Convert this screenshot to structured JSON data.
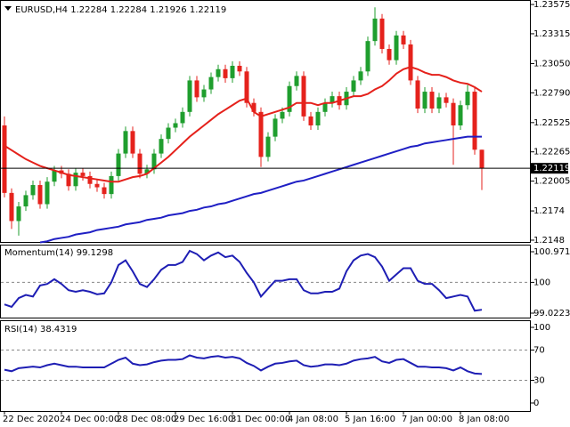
{
  "chart_data": [
    {
      "type": "candlestick",
      "title": "EURUSD,H4",
      "categories": [
        "22 Dec 2020",
        null,
        null,
        null,
        null,
        null,
        null,
        null,
        "24 Dec 00:00",
        null,
        null,
        null,
        null,
        null,
        null,
        null,
        "28 Dec 08:00",
        null,
        null,
        null,
        null,
        null,
        null,
        null,
        "29 Dec 16:00",
        null,
        null,
        null,
        null,
        null,
        null,
        null,
        "31 Dec 00:00",
        null,
        null,
        null,
        null,
        null,
        null,
        null,
        "4 Jan 08:00",
        null,
        null,
        null,
        null,
        null,
        null,
        null,
        "5 Jan 16:00",
        null,
        null,
        null,
        null,
        null,
        null,
        null,
        "7 Jan 00:00",
        null,
        null,
        null,
        null,
        null,
        null,
        null,
        "8 Jan 08:00",
        null,
        null,
        null
      ],
      "open": [
        1.225,
        1.219,
        1.2165,
        1.2178,
        1.2188,
        1.2197,
        1.218,
        1.22,
        1.221,
        1.2207,
        1.2196,
        1.2208,
        1.2205,
        1.2198,
        1.2195,
        1.2189,
        1.2205,
        1.2225,
        1.2245,
        1.2225,
        1.2207,
        1.2211,
        1.2225,
        1.2238,
        1.2248,
        1.2252,
        1.2262,
        1.229,
        1.2275,
        1.2282,
        1.2293,
        1.23,
        1.2292,
        1.2303,
        1.2298,
        1.227,
        1.2262,
        1.2222,
        1.224,
        1.2256,
        1.2262,
        1.2285,
        1.2294,
        1.2258,
        1.225,
        1.2262,
        1.227,
        1.2276,
        1.2268,
        1.228,
        1.229,
        1.2298,
        1.2325,
        1.2345,
        1.2318,
        1.2308,
        1.233,
        1.2322,
        1.229,
        1.2265,
        1.228,
        1.2265,
        1.2275,
        1.227,
        1.225,
        1.2268,
        1.228,
        1.22284
      ],
      "high": [
        1.2258,
        1.2194,
        1.2182,
        1.2192,
        1.2201,
        1.2201,
        1.2204,
        1.2214,
        1.2214,
        1.2211,
        1.2212,
        1.2212,
        1.2209,
        1.2202,
        1.2199,
        1.2209,
        1.2229,
        1.2249,
        1.2249,
        1.2229,
        1.2215,
        1.2229,
        1.2242,
        1.2252,
        1.2256,
        1.2266,
        1.2294,
        1.2294,
        1.2286,
        1.2297,
        1.2304,
        1.2304,
        1.2307,
        1.2307,
        1.2302,
        1.2274,
        1.2266,
        1.2244,
        1.226,
        1.2266,
        1.2289,
        1.2298,
        1.2298,
        1.2262,
        1.2266,
        1.2274,
        1.228,
        1.228,
        1.2284,
        1.2294,
        1.2302,
        1.2329,
        1.2355,
        1.2349,
        1.2322,
        1.2334,
        1.2334,
        1.2326,
        1.2294,
        1.2284,
        1.2284,
        1.2279,
        1.2279,
        1.2274,
        1.2272,
        1.2286,
        1.2284,
        1.22284
      ],
      "low": [
        1.2186,
        1.2158,
        1.2152,
        1.2174,
        1.2184,
        1.2176,
        1.2176,
        1.2196,
        1.2203,
        1.2192,
        1.2192,
        1.2201,
        1.2194,
        1.2191,
        1.2185,
        1.2185,
        1.2201,
        1.2221,
        1.2221,
        1.2203,
        1.2203,
        1.2207,
        1.2221,
        1.2234,
        1.2244,
        1.2248,
        1.2258,
        1.2271,
        1.2271,
        1.2278,
        1.2289,
        1.2288,
        1.2288,
        1.2294,
        1.2266,
        1.2258,
        1.2213,
        1.2218,
        1.2236,
        1.2252,
        1.2258,
        1.2281,
        1.2254,
        1.2246,
        1.2246,
        1.2258,
        1.2266,
        1.2264,
        1.2264,
        1.2276,
        1.2286,
        1.2294,
        1.2321,
        1.2314,
        1.2304,
        1.2304,
        1.2318,
        1.2286,
        1.2261,
        1.2261,
        1.2261,
        1.2261,
        1.2266,
        1.2215,
        1.2246,
        1.2264,
        1.2224,
        1.21926
      ],
      "close": [
        1.219,
        1.2165,
        1.2178,
        1.2188,
        1.2197,
        1.218,
        1.22,
        1.221,
        1.2207,
        1.2196,
        1.2208,
        1.2205,
        1.2198,
        1.2195,
        1.2189,
        1.2205,
        1.2225,
        1.2245,
        1.2225,
        1.2207,
        1.2211,
        1.2225,
        1.2238,
        1.2248,
        1.2252,
        1.2262,
        1.229,
        1.2275,
        1.2282,
        1.2293,
        1.23,
        1.2292,
        1.2303,
        1.2298,
        1.227,
        1.2262,
        1.2222,
        1.224,
        1.2256,
        1.2262,
        1.2285,
        1.2294,
        1.2258,
        1.225,
        1.2262,
        1.227,
        1.2276,
        1.2268,
        1.228,
        1.229,
        1.2298,
        1.2325,
        1.2345,
        1.2318,
        1.2308,
        1.233,
        1.2322,
        1.229,
        1.2265,
        1.228,
        1.2265,
        1.2275,
        1.227,
        1.225,
        1.2268,
        1.228,
        1.22284,
        1.22119
      ],
      "up_color": "#1f9e2e",
      "down_color": "#e5221c",
      "series": [
        {
          "color": "#e5211b",
          "values": [
            1.2232,
            1.2228,
            1.2224,
            1.222,
            1.2217,
            1.2214,
            1.2212,
            1.221,
            1.2208,
            1.2206,
            1.2205,
            1.2204,
            1.2203,
            1.2202,
            1.2201,
            1.22,
            1.22,
            1.2202,
            1.2204,
            1.2205,
            1.2207,
            1.2212,
            1.2217,
            1.2222,
            1.2228,
            1.2234,
            1.224,
            1.2245,
            1.225,
            1.2255,
            1.226,
            1.2264,
            1.2268,
            1.2272,
            1.2274,
            1.2262,
            1.2258,
            1.226,
            1.2262,
            1.2264,
            1.2266,
            1.227,
            1.227,
            1.227,
            1.2268,
            1.227,
            1.227,
            1.2272,
            1.2274,
            1.2276,
            1.2276,
            1.2278,
            1.2282,
            1.2285,
            1.229,
            1.2296,
            1.23,
            1.2302,
            1.23,
            1.2297,
            1.2295,
            1.2295,
            1.2293,
            1.229,
            1.2288,
            1.2287,
            1.2284,
            1.228
          ]
        },
        {
          "color": "#1f1fc4",
          "values": [
            null,
            null,
            null,
            null,
            null,
            1.2146,
            1.2147,
            1.2149,
            1.215,
            1.2151,
            1.2153,
            1.2154,
            1.2155,
            1.2157,
            1.2158,
            1.2159,
            1.216,
            1.2162,
            1.2163,
            1.2164,
            1.2166,
            1.2167,
            1.2168,
            1.217,
            1.2171,
            1.2172,
            1.2174,
            1.2175,
            1.2177,
            1.2178,
            1.218,
            1.2181,
            1.2183,
            1.2185,
            1.2187,
            1.2189,
            1.219,
            1.2192,
            1.2194,
            1.2196,
            1.2198,
            1.22,
            1.2201,
            1.2203,
            1.2205,
            1.2207,
            1.2209,
            1.2211,
            1.2213,
            1.2215,
            1.2217,
            1.2219,
            1.2221,
            1.2223,
            1.2225,
            1.2227,
            1.2229,
            1.2231,
            1.2232,
            1.2234,
            1.2235,
            1.2236,
            1.2237,
            1.2238,
            1.2239,
            1.224,
            1.224,
            1.224
          ]
        }
      ],
      "ylim": [
        1.21464,
        1.23615
      ],
      "yticks": [
        1.23575,
        1.23315,
        {
          "value": 1.2305,
          "label": "1.23050"
        },
        {
          "value": 1.2279,
          "label": "1.22790"
        },
        1.22525,
        1.22265,
        1.22005,
        1.2174,
        1.2148
      ],
      "grid": false
    },
    {
      "type": "line",
      "title": "Momentum(14)",
      "color": "#1e1eb4",
      "values": [
        99.3,
        99.22,
        99.5,
        99.6,
        99.55,
        99.9,
        99.95,
        100.1,
        99.95,
        99.75,
        99.7,
        99.75,
        99.7,
        99.62,
        99.65,
        100.0,
        100.55,
        100.7,
        100.35,
        99.95,
        99.85,
        100.1,
        100.4,
        100.55,
        100.55,
        100.65,
        101.0,
        100.9,
        100.7,
        100.85,
        100.95,
        100.8,
        100.85,
        100.65,
        100.3,
        100.0,
        99.55,
        99.8,
        100.05,
        100.05,
        100.1,
        100.1,
        99.75,
        99.65,
        99.65,
        99.7,
        99.7,
        99.8,
        100.35,
        100.7,
        100.85,
        100.9,
        100.8,
        100.5,
        100.05,
        100.25,
        100.45,
        100.45,
        100.05,
        99.95,
        99.95,
        99.75,
        99.5,
        99.55,
        99.6,
        99.55,
        99.1,
        99.1298
      ],
      "ylim": [
        98.881,
        101.198
      ],
      "yticks": [
        100.9718,
        100,
        99.0223
      ],
      "levels": [
        100
      ]
    },
    {
      "type": "line",
      "title": "RSI(14)",
      "color": "#1e1eb4",
      "values": [
        44,
        42,
        46,
        47,
        48,
        47,
        50,
        52,
        50,
        48,
        48,
        47,
        47,
        47,
        47,
        52,
        57,
        60,
        52,
        50,
        51,
        54,
        56,
        57,
        57,
        58,
        63,
        60,
        59,
        61,
        62,
        60,
        61,
        59,
        53,
        49,
        43,
        48,
        52,
        53,
        55,
        56,
        50,
        48,
        49,
        51,
        51,
        50,
        52,
        56,
        58,
        59,
        61,
        55,
        53,
        57,
        58,
        53,
        48,
        48,
        47,
        47,
        46,
        43,
        47,
        42,
        39,
        38.4319
      ],
      "ylim": [
        -10.6,
        109.4
      ],
      "yticks": [
        100,
        70,
        30,
        0
      ],
      "levels": [
        30,
        70
      ]
    }
  ]
}
